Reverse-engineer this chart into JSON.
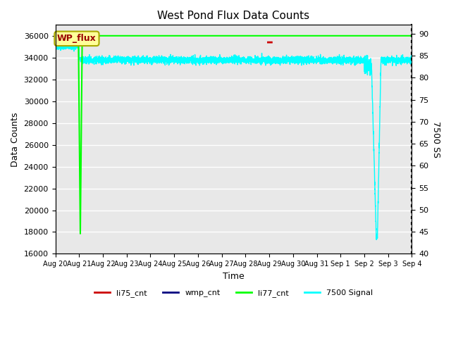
{
  "title": "West Pond Flux Data Counts",
  "xlabel": "Time",
  "ylabel_left": "Data Counts",
  "ylabel_right": "7500 SS",
  "ylim_left": [
    16000,
    37000
  ],
  "ylim_right": [
    40,
    92
  ],
  "yticks_left": [
    16000,
    18000,
    20000,
    22000,
    24000,
    26000,
    28000,
    30000,
    32000,
    34000,
    36000
  ],
  "yticks_right": [
    40,
    45,
    50,
    55,
    60,
    65,
    70,
    75,
    80,
    85,
    90
  ],
  "bg_color": "#e8e8e8",
  "li77_color": "#00ff00",
  "li75_color": "#cc0000",
  "wmp_color": "#000080",
  "signal_color": "#00ffff",
  "annotation_box_facecolor": "#ffff99",
  "annotation_box_edgecolor": "#aaaa00",
  "annotation_text": "WP_flux",
  "annotation_text_color": "#990000",
  "xtick_labels": [
    "Aug 20",
    "Aug 21",
    "Aug 22",
    "Aug 23",
    "Aug 24",
    "Aug 25",
    "Aug 26",
    "Aug 27",
    "Aug 28",
    "Aug 29",
    "Aug 30",
    "Aug 31",
    "Sep 1",
    "Sep 2",
    "Sep 3",
    "Sep 4"
  ],
  "legend_labels": [
    "li75_cnt",
    "wmp_cnt",
    "li77_cnt",
    "7500 Signal"
  ]
}
